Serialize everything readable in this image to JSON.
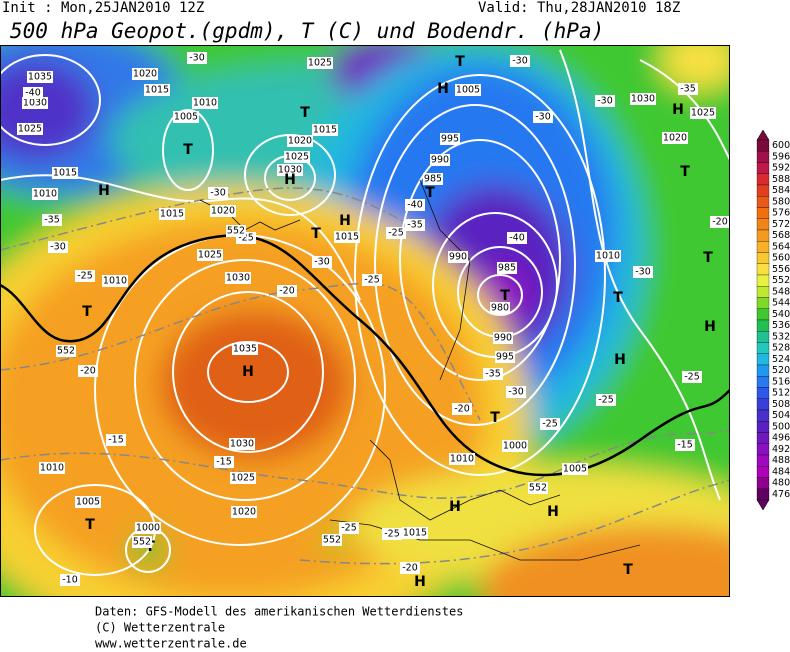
{
  "header": {
    "init": "Init : Mon,25JAN2010 12Z",
    "valid": "Valid: Thu,28JAN2010 18Z",
    "title": "500 hPa Geopot.(gpdm), T (C) und Bodendr. (hPa)"
  },
  "color_scale": {
    "values": [
      600,
      596,
      592,
      588,
      584,
      580,
      576,
      572,
      568,
      564,
      560,
      556,
      552,
      548,
      544,
      540,
      536,
      532,
      528,
      524,
      520,
      516,
      512,
      508,
      504,
      500,
      496,
      492,
      488,
      484,
      480,
      476
    ],
    "colors": [
      "#7a0a3a",
      "#a0104a",
      "#c01848",
      "#d82a30",
      "#e04020",
      "#e85a18",
      "#f07010",
      "#f08418",
      "#f59a20",
      "#f8b028",
      "#f8c830",
      "#f8e040",
      "#e8f040",
      "#c0e830",
      "#80d828",
      "#40c830",
      "#20c050",
      "#20c090",
      "#20c8c0",
      "#20b8e0",
      "#2098f0",
      "#2878f0",
      "#3058e8",
      "#3840d8",
      "#4830c8",
      "#5a20c0",
      "#7018c0",
      "#8810c0",
      "#a008c0",
      "#b000b8",
      "#900090",
      "#600060"
    ]
  },
  "map_labels": [
    "1035",
    "1030",
    "1025",
    "1020",
    "1015",
    "1010",
    "1005",
    "T",
    "1025",
    "1030",
    "H",
    "T",
    "1015",
    "1025",
    "1020",
    "H",
    "1015",
    "1010",
    "1015",
    "1020",
    "1025",
    "1030",
    "1035",
    "H",
    "1030",
    "1025",
    "1020",
    "1005",
    "T",
    "1000",
    "T",
    "1010",
    "995",
    "990",
    "985",
    "T",
    "990",
    "985",
    "980",
    "T",
    "990",
    "995",
    "1000",
    "1005",
    "1010",
    "1020",
    "1025",
    "1030",
    "1005",
    "H",
    "T",
    "H",
    "T",
    "1015",
    "H",
    "H",
    "T",
    "T",
    "H",
    "H",
    "T",
    "H",
    "T",
    "T",
    "H",
    "1015",
    "1010",
    "T",
    "1010",
    "-30",
    "-40",
    "-35",
    "-30",
    "-25",
    "-20",
    "-15",
    "-10",
    "-15",
    "-20",
    "-25",
    "-30",
    "-30",
    "-25",
    "-25",
    "-35",
    "-40",
    "-40",
    "-35",
    "-30",
    "-25",
    "-20",
    "-25",
    "-25",
    "-15",
    "-30",
    "-30",
    "-30",
    "-30",
    "-35",
    "-20",
    "-25",
    "-25",
    "-20",
    "552",
    "552",
    "552",
    "552",
    "552"
  ],
  "footer": [
    "Daten: GFS-Modell des amerikanischen Wetterdienstes",
    "(C) Wetterzentrale",
    "www.wetterzentrale.de"
  ]
}
